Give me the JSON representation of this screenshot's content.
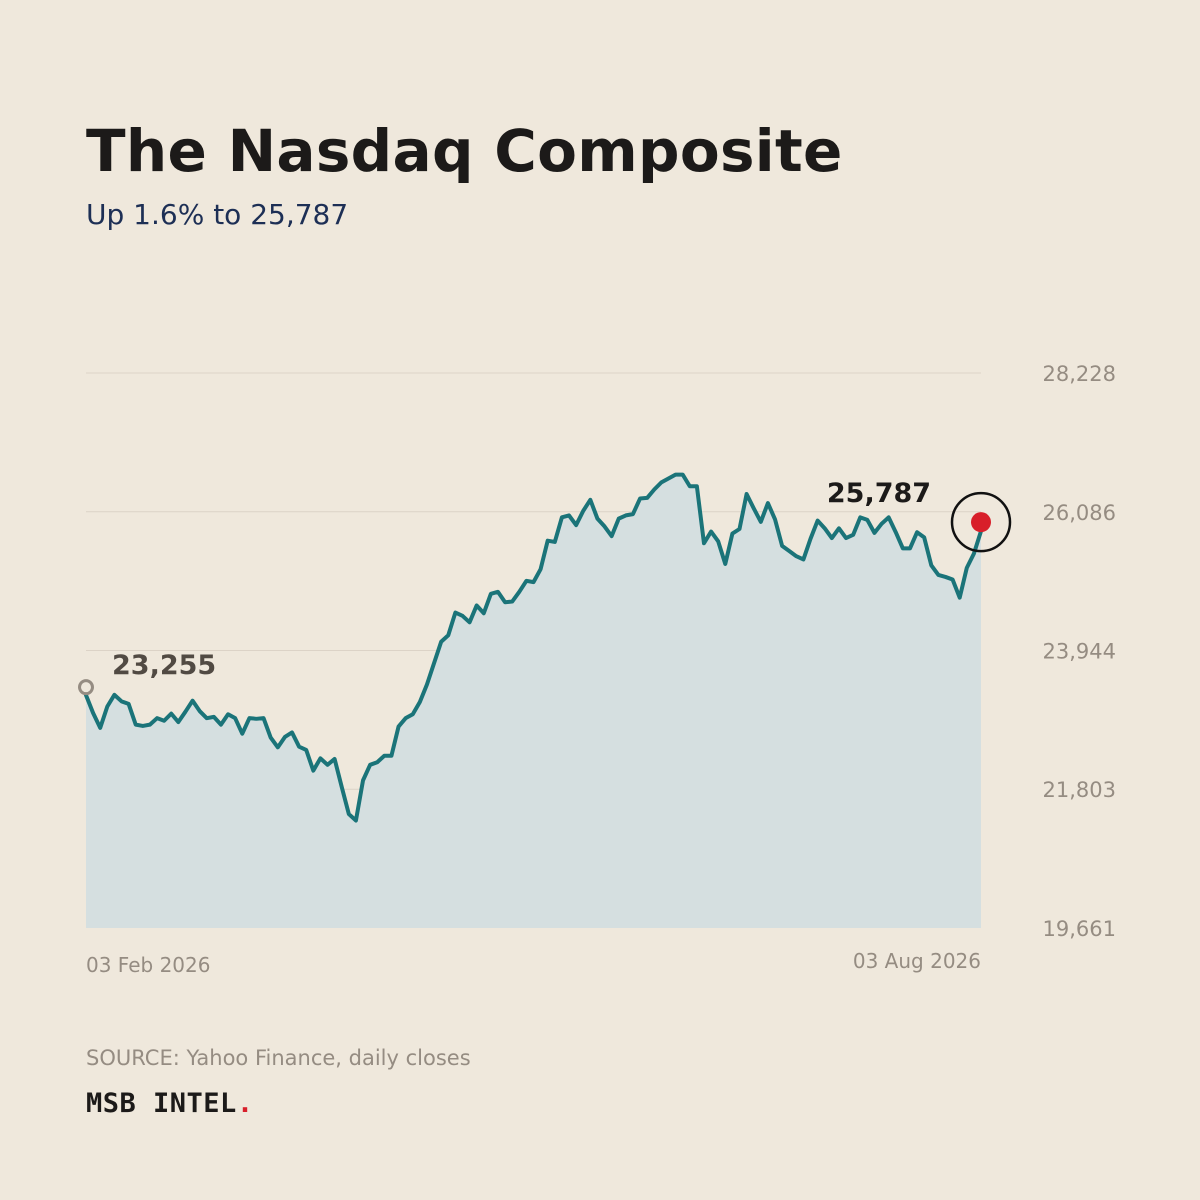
{
  "header": {
    "title": "The Nasdaq Composite",
    "subtitle": "Up 1.6% to 25,787"
  },
  "footer": {
    "source": "SOURCE: Yahoo Finance, daily closes",
    "brand": "MSB INTEL",
    "brand_dot": "."
  },
  "colors": {
    "background": "#efe8dc",
    "line": "#1b7479",
    "area": "#d5dfe0",
    "grid": "#dcd3c7",
    "tick_text": "#958c82",
    "start_marker": "#958c82",
    "start_label": "#514a43",
    "end_label": "#1c1a19",
    "end_marker": "#d81f2a",
    "end_ring": "#111111"
  },
  "chart_data": {
    "type": "area",
    "title": "The Nasdaq Composite",
    "subtitle": "Up 1.6% to 25,787",
    "xlabel": "",
    "ylabel": "",
    "x_range": [
      "2026-02-03",
      "2026-08-03"
    ],
    "x_tick_labels": [
      "03 Feb 2026",
      "03 Aug 2026"
    ],
    "ylim": [
      19661,
      28228
    ],
    "y_ticks": [
      19661,
      21803,
      23944,
      26086,
      28228
    ],
    "y_tick_labels": [
      "19,661",
      "21,803",
      "23,944",
      "26,086",
      "28,228"
    ],
    "grid": true,
    "start_label": "23,255",
    "end_label": "25,787",
    "series": [
      {
        "values": [
          23255,
          22980,
          22750,
          23080,
          23260,
          23160,
          23120,
          22800,
          22780,
          22800,
          22900,
          22860,
          22970,
          22840,
          23000,
          23170,
          23010,
          22900,
          22920,
          22800,
          22960,
          22900,
          22660,
          22900,
          22890,
          22900,
          22600,
          22450,
          22610,
          22680,
          22460,
          22410,
          22090,
          22280,
          22180,
          22270,
          21840,
          21420,
          21320,
          21940,
          22180,
          22220,
          22320,
          22320,
          22770,
          22900,
          22960,
          23150,
          23420,
          23750,
          24080,
          24180,
          24530,
          24480,
          24380,
          24640,
          24520,
          24820,
          24850,
          24690,
          24700,
          24850,
          25020,
          25000,
          25200,
          25640,
          25620,
          26000,
          26030,
          25880,
          26100,
          26270,
          25980,
          25860,
          25710,
          25980,
          26030,
          26050,
          26290,
          26300,
          26430,
          26540,
          26600,
          26660,
          26660,
          26480,
          26480,
          25600,
          25780,
          25630,
          25280,
          25750,
          25820,
          26360,
          26140,
          25930,
          26220,
          25970,
          25560,
          25480,
          25400,
          25350,
          25670,
          25950,
          25830,
          25680,
          25830,
          25680,
          25730,
          26000,
          25960,
          25760,
          25900,
          26000,
          25770,
          25520,
          25520,
          25770,
          25690,
          25260,
          25110,
          25080,
          25040,
          24760,
          25220,
          25440,
          25787
        ]
      }
    ]
  }
}
